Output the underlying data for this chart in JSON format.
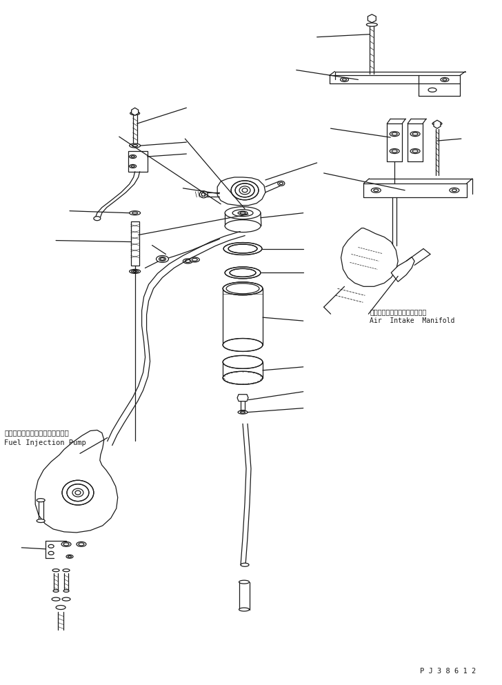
{
  "bg_color": "#ffffff",
  "line_color": "#1a1a1a",
  "fig_width": 7.28,
  "fig_height": 9.93,
  "dpi": 100,
  "label_fuel_injection_jp": "フェエルインジェクションポンプ",
  "label_fuel_injection_en": "Fuel Injection Pump",
  "label_air_intake_jp": "エアーインテークマニホールド",
  "label_air_intake_en": "Air  Intake  Manifold",
  "watermark": "P J 3 8 6 1 2"
}
